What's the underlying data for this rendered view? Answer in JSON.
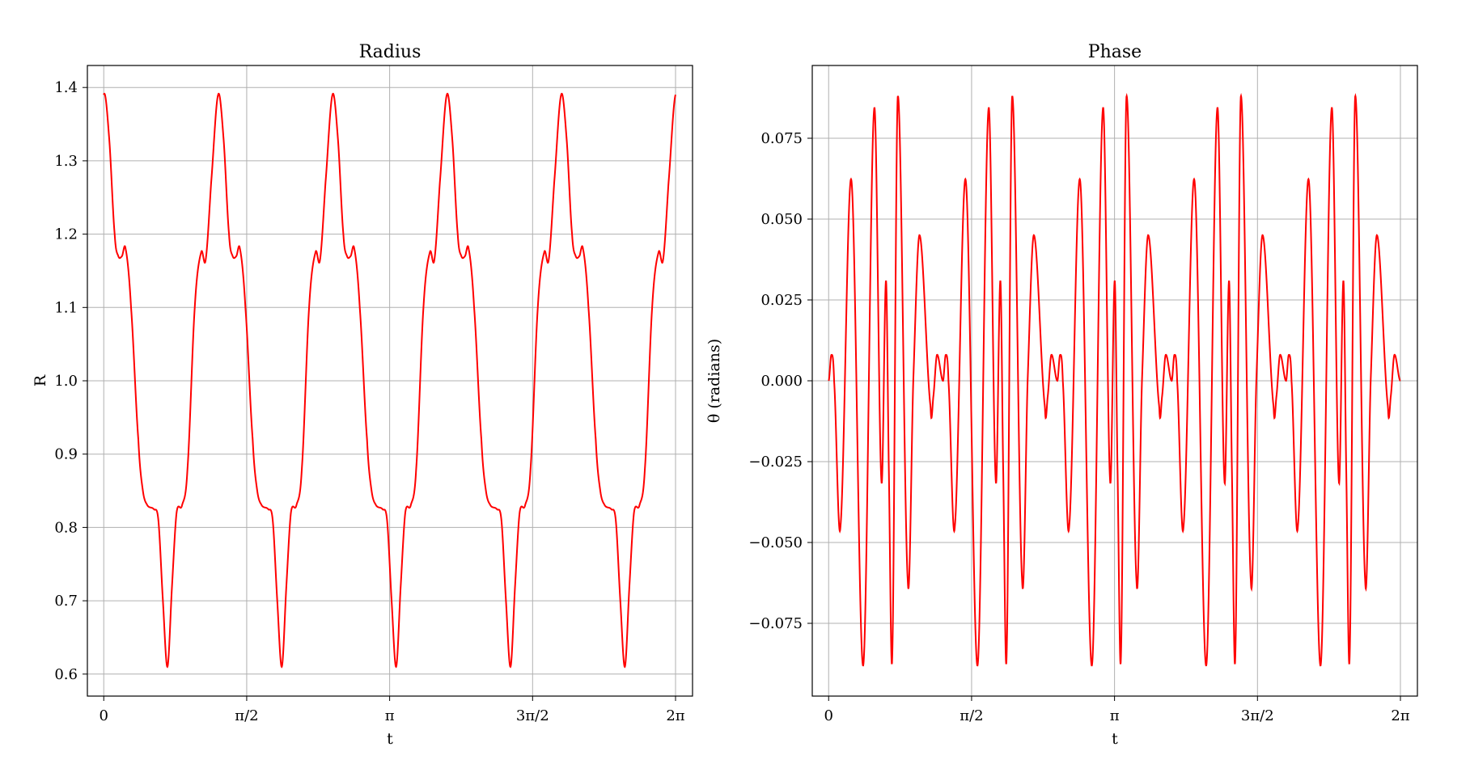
{
  "chart_data": [
    {
      "type": "line",
      "title": "Radius",
      "xlabel": "t",
      "ylabel": "R",
      "xlim": [
        -0.18,
        6.47
      ],
      "ylim": [
        0.57,
        1.43
      ],
      "grid": true,
      "x_ticks": [
        0,
        1.5708,
        3.1416,
        4.7124,
        6.2832
      ],
      "x_tick_labels": [
        "0",
        "π/2",
        "π",
        "3π/2",
        "2π"
      ],
      "y_ticks": [
        0.6,
        0.7,
        0.8,
        0.9,
        1.0,
        1.1,
        1.2,
        1.3,
        1.4
      ],
      "y_tick_labels": [
        "0.6",
        "0.7",
        "0.8",
        "0.9",
        "1.0",
        "1.1",
        "1.2",
        "1.3",
        "1.4"
      ],
      "series": [
        {
          "color": "#ff0000",
          "period": 1.2566,
          "x": [
            0,
            0.06,
            0.12,
            0.16,
            0.2,
            0.24,
            0.3,
            0.38,
            0.43,
            0.48,
            0.55,
            0.6,
            0.65,
            0.7,
            0.75,
            0.8,
            0.86,
            0.92,
            1.0,
            1.07,
            1.12,
            1.18,
            1.2566
          ],
          "y": [
            1.39,
            1.33,
            1.2,
            1.17,
            1.17,
            1.18,
            1.1,
            0.92,
            0.85,
            0.83,
            0.825,
            0.81,
            0.7,
            0.61,
            0.72,
            0.82,
            0.83,
            0.88,
            1.1,
            1.175,
            1.165,
            1.27,
            1.39
          ]
        }
      ]
    },
    {
      "type": "line",
      "title": "Phase",
      "xlabel": "t",
      "ylabel": "θ (radians)",
      "xlim": [
        -0.18,
        6.47
      ],
      "ylim": [
        -0.0975,
        0.0975
      ],
      "grid": true,
      "x_ticks": [
        0,
        1.5708,
        3.1416,
        4.7124,
        6.2832
      ],
      "x_tick_labels": [
        "0",
        "π/2",
        "π",
        "3π/2",
        "2π"
      ],
      "y_ticks": [
        -0.075,
        -0.05,
        -0.025,
        0.0,
        0.025,
        0.05,
        0.075
      ],
      "y_tick_labels": [
        "−0.075",
        "−0.050",
        "−0.025",
        "0.000",
        "0.025",
        "0.050",
        "0.075"
      ],
      "series": [
        {
          "color": "#ff0000",
          "period": 1.2566,
          "x": [
            0,
            0.03,
            0.06,
            0.13,
            0.25,
            0.38,
            0.5,
            0.58,
            0.63,
            0.66,
            0.7,
            0.76,
            0.87,
            0.93,
            1.0,
            1.12,
            1.15,
            1.19,
            1.2566
          ],
          "y": [
            0.0,
            0.008,
            0.0,
            -0.045,
            0.062,
            -0.088,
            0.084,
            -0.031,
            0.031,
            -0.025,
            -0.084,
            0.088,
            -0.062,
            0.0,
            0.045,
            -0.008,
            -0.005,
            0.008,
            0.0
          ]
        }
      ]
    }
  ]
}
